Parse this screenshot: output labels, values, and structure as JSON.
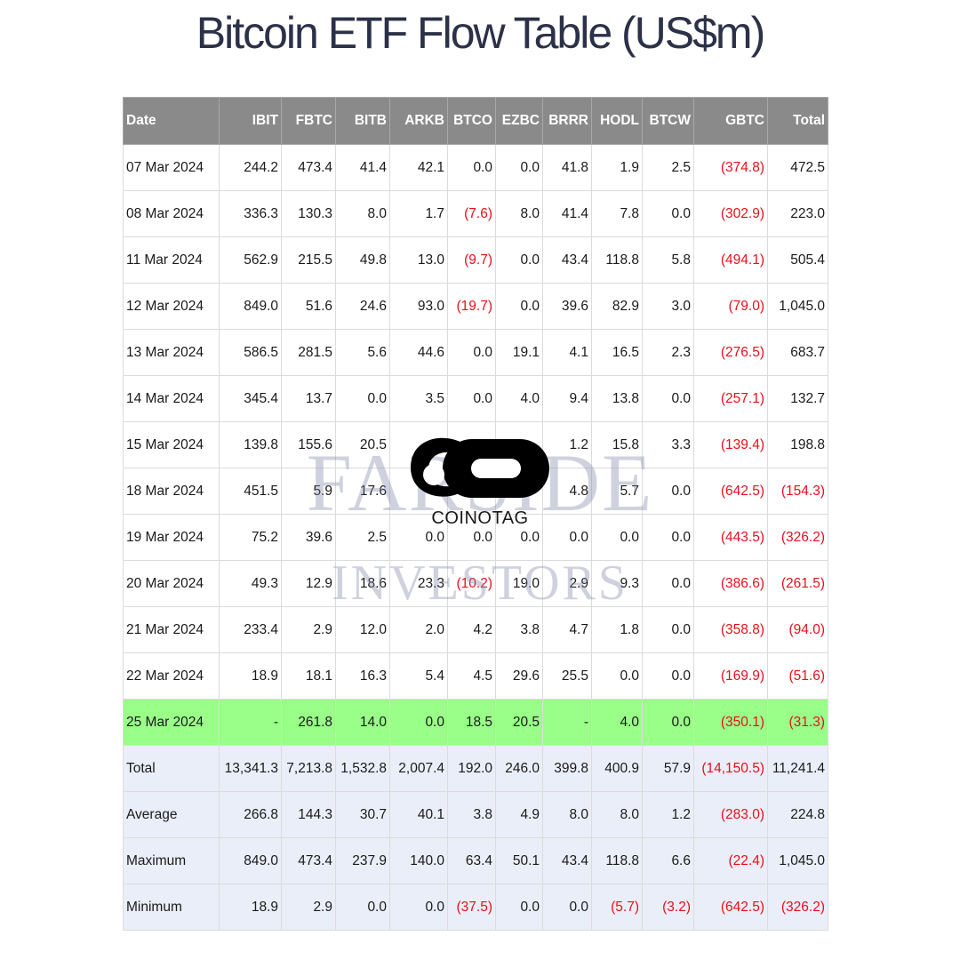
{
  "title": "Bitcoin ETF Flow Table (US$m)",
  "watermark": {
    "line1": "FARSIDE",
    "line2": "INVESTORS"
  },
  "logo": {
    "icon": "coinotag-logo-icon",
    "text": "COINOTAG"
  },
  "colors": {
    "header_bg": "#8a8a8a",
    "highlight_row": "#99ff88",
    "summary_bg": "#eaeef8",
    "negative": "#e8101c"
  },
  "table": {
    "columns": [
      "Date",
      "IBIT",
      "FBTC",
      "BITB",
      "ARKB",
      "BTCO",
      "EZBC",
      "BRRR",
      "HODL",
      "BTCW",
      "GBTC",
      "Total"
    ],
    "rows": [
      [
        "07 Mar 2024",
        "244.2",
        "473.4",
        "41.4",
        "42.1",
        "0.0",
        "0.0",
        "41.8",
        "1.9",
        "2.5",
        "(374.8)",
        "472.5"
      ],
      [
        "08 Mar 2024",
        "336.3",
        "130.3",
        "8.0",
        "1.7",
        "(7.6)",
        "8.0",
        "41.4",
        "7.8",
        "0.0",
        "(302.9)",
        "223.0"
      ],
      [
        "11 Mar 2024",
        "562.9",
        "215.5",
        "49.8",
        "13.0",
        "(9.7)",
        "0.0",
        "43.4",
        "118.8",
        "5.8",
        "(494.1)",
        "505.4"
      ],
      [
        "12 Mar 2024",
        "849.0",
        "51.6",
        "24.6",
        "93.0",
        "(19.7)",
        "0.0",
        "39.6",
        "82.9",
        "3.0",
        "(79.0)",
        "1,045.0"
      ],
      [
        "13 Mar 2024",
        "586.5",
        "281.5",
        "5.6",
        "44.6",
        "0.0",
        "19.1",
        "4.1",
        "16.5",
        "2.3",
        "(276.5)",
        "683.7"
      ],
      [
        "14 Mar 2024",
        "345.4",
        "13.7",
        "0.0",
        "3.5",
        "0.0",
        "4.0",
        "9.4",
        "13.8",
        "0.0",
        "(257.1)",
        "132.7"
      ],
      [
        "15 Mar 2024",
        "139.8",
        "155.6",
        "20.5",
        "",
        "",
        "",
        "1.2",
        "15.8",
        "3.3",
        "(139.4)",
        "198.8"
      ],
      [
        "18 Mar 2024",
        "451.5",
        "5.9",
        "17.6",
        "",
        "",
        "",
        "4.8",
        "5.7",
        "0.0",
        "(642.5)",
        "(154.3)"
      ],
      [
        "19 Mar 2024",
        "75.2",
        "39.6",
        "2.5",
        "0.0",
        "0.0",
        "0.0",
        "0.0",
        "0.0",
        "0.0",
        "(443.5)",
        "(326.2)"
      ],
      [
        "20 Mar 2024",
        "49.3",
        "12.9",
        "18.6",
        "23.3",
        "(10.2)",
        "19.0",
        "2.9",
        "9.3",
        "0.0",
        "(386.6)",
        "(261.5)"
      ],
      [
        "21 Mar 2024",
        "233.4",
        "2.9",
        "12.0",
        "2.0",
        "4.2",
        "3.8",
        "4.7",
        "1.8",
        "0.0",
        "(358.8)",
        "(94.0)"
      ],
      [
        "22 Mar 2024",
        "18.9",
        "18.1",
        "16.3",
        "5.4",
        "4.5",
        "29.6",
        "25.5",
        "0.0",
        "0.0",
        "(169.9)",
        "(51.6)"
      ],
      [
        "25 Mar 2024",
        "-",
        "261.8",
        "14.0",
        "0.0",
        "18.5",
        "20.5",
        "-",
        "4.0",
        "0.0",
        "(350.1)",
        "(31.3)"
      ]
    ],
    "highlight_row_index": 12,
    "summary_rows": [
      [
        "Total",
        "13,341.3",
        "7,213.8",
        "1,532.8",
        "2,007.4",
        "192.0",
        "246.0",
        "399.8",
        "400.9",
        "57.9",
        "(14,150.5)",
        "11,241.4"
      ],
      [
        "Average",
        "266.8",
        "144.3",
        "30.7",
        "40.1",
        "3.8",
        "4.9",
        "8.0",
        "8.0",
        "1.2",
        "(283.0)",
        "224.8"
      ],
      [
        "Maximum",
        "849.0",
        "473.4",
        "237.9",
        "140.0",
        "63.4",
        "50.1",
        "43.4",
        "118.8",
        "6.6",
        "(22.4)",
        "1,045.0"
      ],
      [
        "Minimum",
        "18.9",
        "2.9",
        "0.0",
        "0.0",
        "(37.5)",
        "0.0",
        "0.0",
        "(5.7)",
        "(3.2)",
        "(642.5)",
        "(326.2)"
      ]
    ]
  }
}
